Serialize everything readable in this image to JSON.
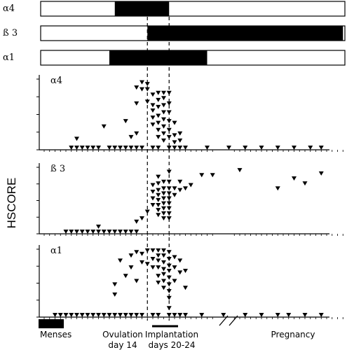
{
  "chart_data": {
    "type": "scatter",
    "y_axis_label": "HSCORE",
    "x_axis": {
      "range_days": [
        1,
        56
      ],
      "annotations": [
        {
          "text": "Menses",
          "start_day": 1,
          "end_day": 5
        },
        {
          "text": "Ovulation",
          "text2": "day 14",
          "day": 14
        },
        {
          "text": "Implantation",
          "text2": "days 20-24",
          "start_day": 20,
          "end_day": 24
        },
        {
          "text": "Pregnancy",
          "day": 52
        }
      ],
      "axis_break_after_day": 32
    },
    "expression_bars": [
      {
        "label": "α4",
        "on_start_day": 14,
        "on_end_day": 24
      },
      {
        "label": "ß 3",
        "on_start_day": 20,
        "on_end_day": 56
      },
      {
        "label": "α1",
        "on_start_day": 13,
        "on_end_day": 31
      }
    ],
    "dashed_lines_days": [
      20,
      24
    ],
    "panels": [
      {
        "label": "α4",
        "y_range": [
          0,
          4
        ],
        "points": [
          [
            6,
            0
          ],
          [
            7,
            0
          ],
          [
            8,
            0
          ],
          [
            9,
            0
          ],
          [
            10,
            0
          ],
          [
            11,
            0
          ],
          [
            13,
            0
          ],
          [
            14,
            0
          ],
          [
            15,
            0
          ],
          [
            16,
            0
          ],
          [
            17,
            0
          ],
          [
            18,
            0
          ],
          [
            19,
            0
          ],
          [
            21,
            0
          ],
          [
            22,
            0
          ],
          [
            24,
            0
          ],
          [
            25,
            0
          ],
          [
            26,
            0
          ],
          [
            27,
            0
          ],
          [
            31,
            0
          ],
          [
            35,
            0
          ],
          [
            38,
            0
          ],
          [
            41,
            0
          ],
          [
            44,
            0
          ],
          [
            47,
            0
          ],
          [
            50,
            0
          ],
          [
            52,
            0
          ],
          [
            7,
            0.5
          ],
          [
            12,
            1.2
          ],
          [
            16,
            1.5
          ],
          [
            17,
            0.6
          ],
          [
            18,
            0.8
          ],
          [
            18,
            2.5
          ],
          [
            18,
            3.4
          ],
          [
            19,
            3.7
          ],
          [
            19,
            3.3
          ],
          [
            20,
            3.6
          ],
          [
            20,
            3.3
          ],
          [
            20,
            2.6
          ],
          [
            21,
            3.0
          ],
          [
            21,
            2.4
          ],
          [
            21,
            2.1
          ],
          [
            21,
            1.7
          ],
          [
            21,
            1.3
          ],
          [
            22,
            3.1
          ],
          [
            22,
            2.7
          ],
          [
            22,
            2.3
          ],
          [
            22,
            1.8
          ],
          [
            22,
            1.4
          ],
          [
            22,
            1.0
          ],
          [
            22,
            0.6
          ],
          [
            23,
            3.1
          ],
          [
            23,
            2.8
          ],
          [
            23,
            2.4
          ],
          [
            23,
            2.0
          ],
          [
            23,
            1.6
          ],
          [
            23,
            1.2
          ],
          [
            23,
            0.8
          ],
          [
            23,
            0.4
          ],
          [
            24,
            3.1
          ],
          [
            24,
            2.5
          ],
          [
            24,
            2.0
          ],
          [
            24,
            1.5
          ],
          [
            24,
            1.0
          ],
          [
            24,
            0.6
          ],
          [
            25,
            1.4
          ],
          [
            25,
            0.7
          ],
          [
            25,
            0.3
          ],
          [
            26,
            0.4
          ],
          [
            26,
            0.8
          ]
        ]
      },
      {
        "label": "ß 3",
        "y_range": [
          0,
          4
        ],
        "points": [
          [
            5,
            0
          ],
          [
            6,
            0
          ],
          [
            7,
            0
          ],
          [
            8,
            0
          ],
          [
            9,
            0
          ],
          [
            10,
            0
          ],
          [
            11,
            0
          ],
          [
            12,
            0
          ],
          [
            13,
            0
          ],
          [
            14,
            0
          ],
          [
            15,
            0
          ],
          [
            16,
            0
          ],
          [
            17,
            0
          ],
          [
            18,
            0
          ],
          [
            11,
            0.3
          ],
          [
            18,
            0.6
          ],
          [
            19,
            0.8
          ],
          [
            20,
            1.2
          ],
          [
            21,
            2.8
          ],
          [
            21,
            2.4
          ],
          [
            21,
            2.0
          ],
          [
            21,
            1.6
          ],
          [
            22,
            3.3
          ],
          [
            22,
            2.9
          ],
          [
            22,
            2.5
          ],
          [
            22,
            2.2
          ],
          [
            22,
            1.9
          ],
          [
            22,
            1.6
          ],
          [
            22,
            1.3
          ],
          [
            22,
            1.0
          ],
          [
            23,
            3.0
          ],
          [
            23,
            2.6
          ],
          [
            23,
            2.3
          ],
          [
            23,
            2.0
          ],
          [
            23,
            1.7
          ],
          [
            23,
            1.4
          ],
          [
            23,
            1.1
          ],
          [
            23,
            0.8
          ],
          [
            24,
            3.6
          ],
          [
            24,
            3.0
          ],
          [
            24,
            2.6
          ],
          [
            24,
            2.3
          ],
          [
            24,
            2.0
          ],
          [
            24,
            1.7
          ],
          [
            24,
            1.4
          ],
          [
            24,
            1.1
          ],
          [
            24,
            0.8
          ],
          [
            25,
            2.6
          ],
          [
            25,
            2.2
          ],
          [
            26,
            3.0
          ],
          [
            26,
            2.5
          ],
          [
            27,
            2.6
          ],
          [
            28,
            2.8
          ],
          [
            30,
            3.4
          ],
          [
            32,
            3.4
          ],
          [
            37,
            3.7
          ],
          [
            44,
            2.6
          ],
          [
            47,
            3.2
          ],
          [
            49,
            2.9
          ],
          [
            52,
            3.5
          ]
        ]
      },
      {
        "label": "α1",
        "y_range": [
          0,
          4
        ],
        "points": [
          [
            3,
            0
          ],
          [
            4,
            0
          ],
          [
            5,
            0
          ],
          [
            6,
            0
          ],
          [
            7,
            0
          ],
          [
            8,
            0
          ],
          [
            9,
            0
          ],
          [
            10,
            0
          ],
          [
            11,
            0
          ],
          [
            12,
            0
          ],
          [
            13,
            0
          ],
          [
            14,
            0
          ],
          [
            15,
            0
          ],
          [
            16,
            0
          ],
          [
            17,
            0
          ],
          [
            18,
            0
          ],
          [
            19,
            0
          ],
          [
            21,
            0
          ],
          [
            22,
            0
          ],
          [
            24,
            0
          ],
          [
            25,
            0
          ],
          [
            26,
            0
          ],
          [
            27,
            0
          ],
          [
            30,
            0
          ],
          [
            34,
            0
          ],
          [
            38,
            0
          ],
          [
            41,
            0
          ],
          [
            44,
            0
          ],
          [
            46,
            0
          ],
          [
            49,
            0
          ],
          [
            52,
            0
          ],
          [
            14,
            1.2
          ],
          [
            14,
            1.8
          ],
          [
            15,
            3.2
          ],
          [
            16,
            2.3
          ],
          [
            17,
            2.8
          ],
          [
            17,
            3.5
          ],
          [
            18,
            3.7
          ],
          [
            18,
            2.0
          ],
          [
            19,
            3.6
          ],
          [
            19,
            3.1
          ],
          [
            20,
            3.8
          ],
          [
            20,
            3.0
          ],
          [
            21,
            3.8
          ],
          [
            21,
            3.3
          ],
          [
            21,
            2.8
          ],
          [
            22,
            3.8
          ],
          [
            22,
            3.5
          ],
          [
            22,
            3.2
          ],
          [
            22,
            2.8
          ],
          [
            22,
            2.3
          ],
          [
            22,
            1.9
          ],
          [
            23,
            3.8
          ],
          [
            23,
            3.5
          ],
          [
            23,
            3.1
          ],
          [
            23,
            2.7
          ],
          [
            23,
            2.4
          ],
          [
            23,
            2.0
          ],
          [
            23,
            1.6
          ],
          [
            24,
            3.7
          ],
          [
            24,
            3.3
          ],
          [
            24,
            2.9
          ],
          [
            24,
            2.6
          ],
          [
            24,
            2.2
          ],
          [
            24,
            1.8
          ],
          [
            24,
            1.4
          ],
          [
            24,
            1.0
          ],
          [
            24,
            0.4
          ],
          [
            25,
            3.4
          ],
          [
            25,
            2.8
          ],
          [
            25,
            2.0
          ],
          [
            26,
            3.2
          ],
          [
            26,
            2.5
          ],
          [
            27,
            2.6
          ],
          [
            27,
            1.6
          ]
        ]
      }
    ]
  }
}
